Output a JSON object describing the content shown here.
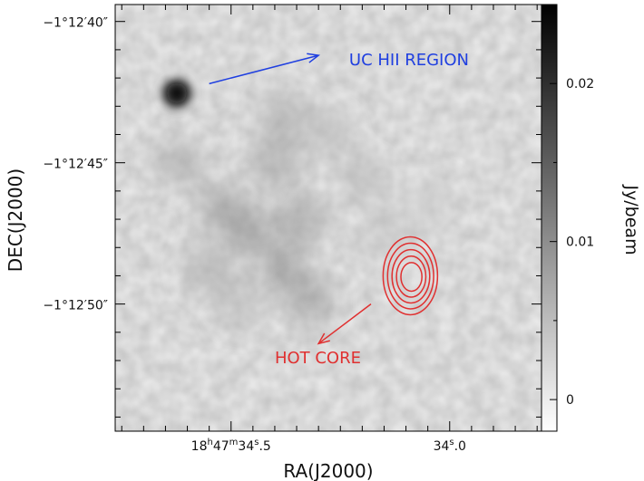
{
  "chart_data": {
    "type": "heatmap",
    "title": "",
    "xlabel": "RA(J2000)",
    "ylabel": "DEC(J2000)",
    "colorbar_label": "Jy/beam",
    "colormap": "grayscale (white = low, black = high)",
    "color_range": [
      -0.002,
      0.025
    ],
    "x_ticks": [
      {
        "value_s": 34.5,
        "major": "18",
        "major_unit": "h",
        "mid": "47",
        "mid_unit": "m",
        "sec": "34",
        "sec_unit": "s",
        "frac": ".5"
      },
      {
        "value_s": 34.0,
        "major": "",
        "major_unit": "",
        "mid": "",
        "mid_unit": "",
        "sec": "34",
        "sec_unit": "s",
        "frac": ".0"
      }
    ],
    "y_ticks": [
      {
        "value_arcsec": -40,
        "label": "−1°12′40″"
      },
      {
        "value_arcsec": -45,
        "label": "−1°12′45″"
      },
      {
        "value_arcsec": -50,
        "label": "−1°12′50″"
      }
    ],
    "colorbar_ticks": [
      {
        "value": 0.02,
        "label": "0.02"
      },
      {
        "value": 0.01,
        "label": "0.01"
      },
      {
        "value": 0.0,
        "label": "0"
      }
    ],
    "xlim_s": [
      34.765,
      33.79
    ],
    "ylim_arcsec": [
      -39.4,
      -54.5
    ],
    "colorbar_range": [
      -0.002,
      0.025
    ],
    "sources": [
      {
        "name": "UC HII REGION",
        "ra_s": 34.624,
        "dec_arcsec": -42.54,
        "peak_jy_beam": 0.024
      },
      {
        "name": "HOT CORE",
        "ra_s": 34.09,
        "dec_arcsec": -49.0,
        "peak_jy_beam": 0.003
      }
    ],
    "emission_knots": [
      {
        "ra_s": 34.46,
        "dec_arcsec": -47.4,
        "value": 0.011
      },
      {
        "ra_s": 34.52,
        "dec_arcsec": -46.6,
        "value": 0.01
      },
      {
        "ra_s": 34.4,
        "dec_arcsec": -45.0,
        "value": 0.009
      },
      {
        "ra_s": 34.34,
        "dec_arcsec": -47.0,
        "value": 0.01
      },
      {
        "ra_s": 34.38,
        "dec_arcsec": -48.7,
        "value": 0.011
      },
      {
        "ra_s": 34.32,
        "dec_arcsec": -49.9,
        "value": 0.01
      },
      {
        "ra_s": 34.55,
        "dec_arcsec": -48.8,
        "value": 0.008
      },
      {
        "ra_s": 34.62,
        "dec_arcsec": -45.0,
        "value": 0.008
      },
      {
        "ra_s": 34.38,
        "dec_arcsec": -43.4,
        "value": 0.008
      },
      {
        "ra_s": 34.2,
        "dec_arcsec": -45.6,
        "value": 0.006
      },
      {
        "ra_s": 34.15,
        "dec_arcsec": -47.5,
        "value": 0.005
      },
      {
        "ra_s": 34.05,
        "dec_arcsec": -46.5,
        "value": 0.004
      },
      {
        "ra_s": 34.48,
        "dec_arcsec": -50.0,
        "value": 0.006
      },
      {
        "ra_s": 34.28,
        "dec_arcsec": -44.0,
        "value": 0.006
      }
    ],
    "contours": {
      "color": "#e03030",
      "center_ra_s": 34.09,
      "center_dec_arcsec": -49.0,
      "levels": 5
    },
    "annotations": [
      {
        "text": "UC HII REGION",
        "color": "#1f3fe0",
        "ra_s": 34.23,
        "dec_arcsec": -41.55
      },
      {
        "text": "HOT CORE",
        "color": "#e03030",
        "ra_s": 34.4,
        "dec_arcsec": -52.1
      }
    ],
    "arrows": [
      {
        "color": "#1f3fe0",
        "from": {
          "ra_s": 34.55,
          "dec_arcsec": -42.2
        },
        "to": {
          "ra_s": 34.3,
          "dec_arcsec": -41.2
        }
      },
      {
        "color": "#e03030",
        "from": {
          "ra_s": 34.18,
          "dec_arcsec": -50.0
        },
        "to": {
          "ra_s": 34.3,
          "dec_arcsec": -51.4
        }
      }
    ]
  }
}
